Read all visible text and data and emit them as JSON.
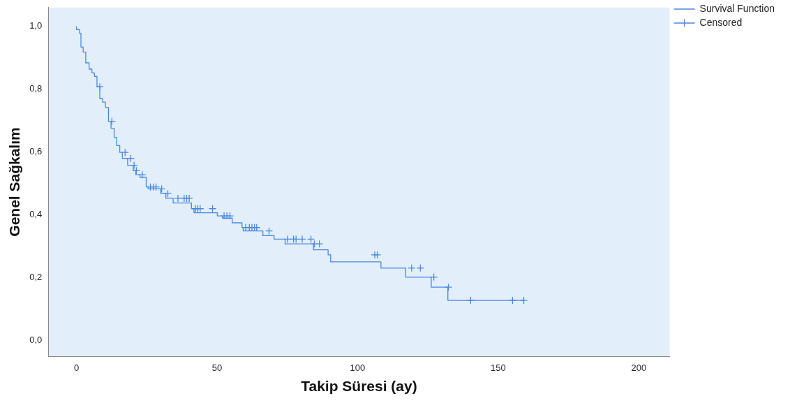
{
  "chart_data": {
    "type": "step",
    "xlabel": "Takip Süresi (ay)",
    "ylabel": "Genel Sağkalım",
    "xlim": [
      -10,
      211
    ],
    "ylim": [
      -0.05,
      1.06
    ],
    "xticks": [
      0,
      50,
      100,
      150,
      200
    ],
    "yticks": [
      {
        "value": 0,
        "label": "0,0"
      },
      {
        "value": 0.2,
        "label": "0,2"
      },
      {
        "value": 0.4,
        "label": "0,4"
      },
      {
        "value": 0.6,
        "label": "0,6"
      },
      {
        "value": 0.8,
        "label": "0,8"
      },
      {
        "value": 1,
        "label": "1,0"
      }
    ],
    "grid": false,
    "legend": "top right",
    "series": [
      {
        "name": "Survival Function",
        "type": "step",
        "color": "#4a88e0",
        "marker": "none",
        "x": [
          0,
          1.1,
          1.6,
          2.4,
          3.3,
          4.5,
          5.5,
          6.4,
          7.3,
          8.3,
          9.3,
          10.3,
          11.4,
          12.3,
          13.4,
          14.3,
          15.4,
          16.3,
          18.2,
          20.2,
          21.1,
          22.6,
          24.8,
          25.5,
          30,
          31.8,
          34.4,
          40.9,
          41.8,
          50.1,
          51.9,
          55.4,
          58.9,
          59.3,
          66.3,
          70.3,
          74.2,
          84.3,
          89.5,
          90.4,
          108.3,
          117.1,
          126.2,
          132.1,
          136.3,
          159.1
        ],
        "values": [
          1,
          0.99,
          0.978,
          0.934,
          0.918,
          0.884,
          0.864,
          0.852,
          0.841,
          0.808,
          0.77,
          0.759,
          0.742,
          0.698,
          0.676,
          0.647,
          0.621,
          0.599,
          0.58,
          0.558,
          0.541,
          0.528,
          0.52,
          0.489,
          0.483,
          0.468,
          0.453,
          0.438,
          0.42,
          0.407,
          0.397,
          0.39,
          0.375,
          0.36,
          0.349,
          0.334,
          0.323,
          0.308,
          0.289,
          0.273,
          0.251,
          0.231,
          0.202,
          0.17,
          0.128,
          0.128
        ]
      },
      {
        "name": "Censored",
        "type": "scatter",
        "color": "#4a88e0",
        "marker": "cross",
        "x": [
          8.3,
          12.6,
          17.3,
          19.3,
          20.5,
          21.3,
          23.4,
          26.3,
          27.4,
          28.3,
          30.3,
          32.5,
          36.1,
          38.3,
          39.2,
          40.1,
          42.3,
          43.1,
          44,
          48.4,
          52.5,
          53.5,
          54.6,
          60.2,
          61.5,
          62.4,
          63.3,
          64.1,
          68.5,
          75.1,
          77.2,
          78.1,
          80.3,
          83.4,
          84.6,
          86.4,
          106.1,
          107,
          119.2,
          122.3,
          127.1,
          132.3,
          140.2,
          155.1,
          159.1
        ],
        "values": [
          0.808,
          0.698,
          0.599,
          0.58,
          0.558,
          0.541,
          0.528,
          0.489,
          0.489,
          0.489,
          0.483,
          0.468,
          0.453,
          0.453,
          0.453,
          0.453,
          0.42,
          0.42,
          0.42,
          0.42,
          0.397,
          0.397,
          0.397,
          0.36,
          0.36,
          0.36,
          0.36,
          0.36,
          0.349,
          0.323,
          0.323,
          0.323,
          0.323,
          0.323,
          0.308,
          0.308,
          0.273,
          0.273,
          0.231,
          0.231,
          0.202,
          0.17,
          0.128,
          0.128,
          0.128
        ]
      }
    ]
  }
}
